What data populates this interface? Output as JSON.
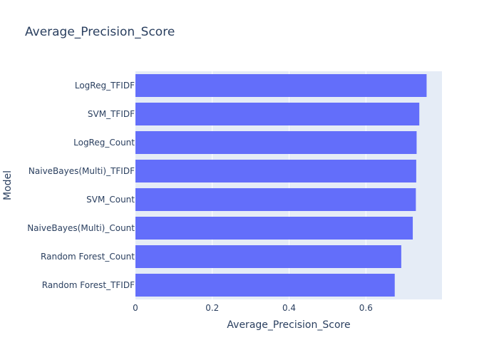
{
  "chart_data": {
    "type": "bar",
    "orientation": "horizontal",
    "title": "Average_Precision_Score",
    "xlabel": "Average_Precision_Score",
    "ylabel": "Model",
    "categories": [
      "LogReg_TFIDF",
      "SVM_TFIDF",
      "LogReg_Count",
      "NaiveBayes(Multi)_TFIDF",
      "SVM_Count",
      "NaiveBayes(Multi)_Count",
      "Random Forest_Count",
      "Random Forest_TFIDF"
    ],
    "values": [
      0.758,
      0.739,
      0.732,
      0.731,
      0.73,
      0.722,
      0.692,
      0.675
    ],
    "xlim": [
      0,
      0.798
    ],
    "xticks": [
      0,
      0.2,
      0.4,
      0.6
    ],
    "xtick_labels": [
      "0",
      "0.2",
      "0.4",
      "0.6"
    ],
    "grid": true,
    "colors": {
      "bar": "#636efa",
      "plot_background": "#e5ecf6",
      "grid": "#ffffff",
      "text": "#2a3f5f"
    }
  }
}
